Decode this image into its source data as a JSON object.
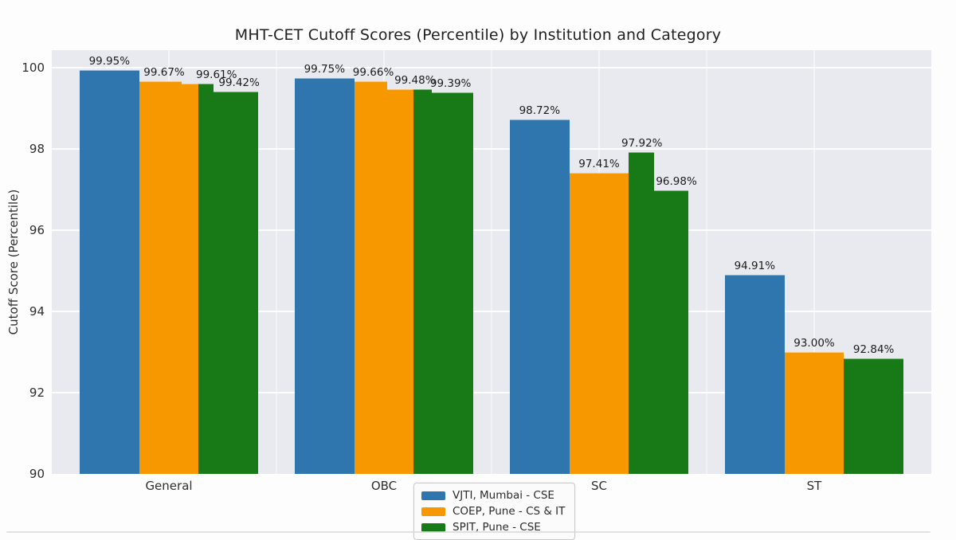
{
  "title": "MHT-CET Cutoff Scores (Percentile) by Institution and Category",
  "axes": {
    "y_label": "Cutoff Score (Percentile)",
    "y_ticks": [
      100,
      98,
      96,
      94,
      92,
      90
    ],
    "x_ticks": [
      "General",
      "OBC",
      "SC",
      "ST"
    ]
  },
  "colors": {
    "blue": "#2e76ad",
    "orange": "#f79800",
    "green": "#177a17",
    "plot_bg": "#e9e9f0",
    "grid": "#ffffff"
  },
  "legend": {
    "items": [
      {
        "label": "VJTI, Mumbai - CSE",
        "color": "blue"
      },
      {
        "label": "COEP, Pune - CS & IT",
        "color": "orange"
      },
      {
        "label": "SPIT, Pune - CSE",
        "color": "green"
      }
    ]
  },
  "chart_data": {
    "type": "bar",
    "title": "MHT-CET Cutoff Scores (Percentile) by Institution and Category",
    "xlabel": "",
    "ylabel": "Cutoff Score (Percentile)",
    "ylim": [
      90,
      100.43
    ],
    "grid": true,
    "legend_position": "bottom-center",
    "categories": [
      "General",
      "OBC",
      "SC",
      "ST"
    ],
    "series": [
      {
        "name": "VJTI, Mumbai - CSE",
        "color": "blue",
        "values": [
          99.95,
          99.75,
          98.72,
          94.91
        ]
      },
      {
        "name": "COEP, Pune - CS & IT",
        "color": "orange",
        "values": [
          99.67,
          99.66,
          97.41,
          93.0
        ]
      },
      {
        "name": "SPIT, Pune - CSE",
        "color": "green",
        "values": [
          99.42,
          99.39,
          96.98,
          92.84
        ]
      }
    ],
    "groups": [
      {
        "category": "General",
        "bars": [
          {
            "series": 0,
            "segments": [
              {
                "v": 99.95,
                "w": 1.0
              }
            ]
          },
          {
            "series": 1,
            "segments": [
              {
                "v": 99.67,
                "w": 0.72
              },
              {
                "v": 99.61,
                "w": 0.28
              }
            ]
          },
          {
            "series": 2,
            "segments": [
              {
                "v": 99.61,
                "w": 0.25
              },
              {
                "v": 99.42,
                "w": 0.75
              }
            ]
          }
        ],
        "labels": [
          {
            "text": "99.95%",
            "bar": 0,
            "xc": 0.5,
            "v": 99.95
          },
          {
            "text": "99.67%",
            "bar": 1,
            "xc": 0.42,
            "v": 99.67
          },
          {
            "text": "99.61%",
            "bar": 2,
            "xc": 0.3,
            "v": 99.61
          },
          {
            "text": "99.42%",
            "bar": 2,
            "xc": 0.68,
            "v": 99.42
          }
        ]
      },
      {
        "category": "OBC",
        "bars": [
          {
            "series": 0,
            "segments": [
              {
                "v": 99.75,
                "w": 1.0
              }
            ]
          },
          {
            "series": 1,
            "segments": [
              {
                "v": 99.66,
                "w": 0.55
              },
              {
                "v": 99.48,
                "w": 0.45
              }
            ]
          },
          {
            "series": 2,
            "segments": [
              {
                "v": 99.48,
                "w": 0.3
              },
              {
                "v": 99.39,
                "w": 0.7
              }
            ]
          }
        ],
        "labels": [
          {
            "text": "99.75%",
            "bar": 0,
            "xc": 0.5,
            "v": 99.75
          },
          {
            "text": "99.66%",
            "bar": 1,
            "xc": 0.32,
            "v": 99.66
          },
          {
            "text": "99.48%",
            "bar": 2,
            "xc": 0.02,
            "v": 99.48
          },
          {
            "text": "99.39%",
            "bar": 2,
            "xc": 0.62,
            "v": 99.39
          }
        ]
      },
      {
        "category": "SC",
        "bars": [
          {
            "series": 0,
            "segments": [
              {
                "v": 98.72,
                "w": 1.0
              }
            ]
          },
          {
            "series": 1,
            "segments": [
              {
                "v": 97.41,
                "w": 1.0
              }
            ]
          },
          {
            "series": 2,
            "segments": [
              {
                "v": 97.92,
                "w": 0.42
              },
              {
                "v": 96.98,
                "w": 0.58
              }
            ]
          }
        ],
        "labels": [
          {
            "text": "98.72%",
            "bar": 0,
            "xc": 0.5,
            "v": 98.72
          },
          {
            "text": "97.41%",
            "bar": 1,
            "xc": 0.5,
            "v": 97.41
          },
          {
            "text": "97.92%",
            "bar": 2,
            "xc": 0.22,
            "v": 97.92
          },
          {
            "text": "96.98%",
            "bar": 2,
            "xc": 0.8,
            "v": 96.98
          }
        ]
      },
      {
        "category": "ST",
        "bars": [
          {
            "series": 0,
            "segments": [
              {
                "v": 94.91,
                "w": 1.0
              }
            ]
          },
          {
            "series": 1,
            "segments": [
              {
                "v": 93.0,
                "w": 1.0
              }
            ]
          },
          {
            "series": 2,
            "segments": [
              {
                "v": 92.84,
                "w": 1.0
              }
            ]
          }
        ],
        "labels": [
          {
            "text": "94.91%",
            "bar": 0,
            "xc": 0.5,
            "v": 94.91
          },
          {
            "text": "93.00%",
            "bar": 1,
            "xc": 0.5,
            "v": 93.0
          },
          {
            "text": "92.84%",
            "bar": 2,
            "xc": 0.5,
            "v": 92.84
          }
        ]
      }
    ]
  }
}
